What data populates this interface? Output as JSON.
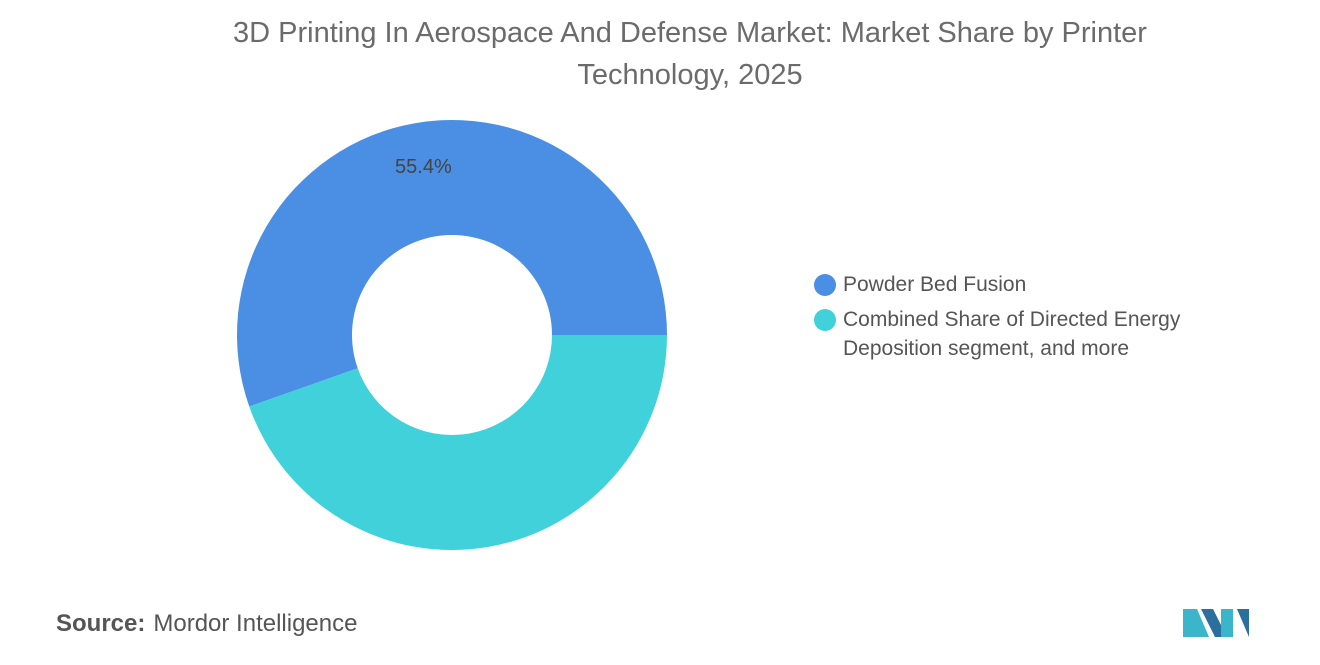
{
  "chart_data": {
    "type": "pie",
    "donut": true,
    "title": "3D Printing In Aerospace And Defense Market: Market Share by Printer Technology, 2025",
    "categories": [
      "Powder Bed Fusion",
      "Combined Share of Directed Energy Deposition segment, and more"
    ],
    "values": [
      55.4,
      44.6
    ],
    "value_labels": [
      "55.4%",
      null
    ],
    "colors": [
      "#4a8fe3",
      "#40d1db"
    ],
    "source_label": "Source:",
    "source": "Mordor Intelligence"
  }
}
